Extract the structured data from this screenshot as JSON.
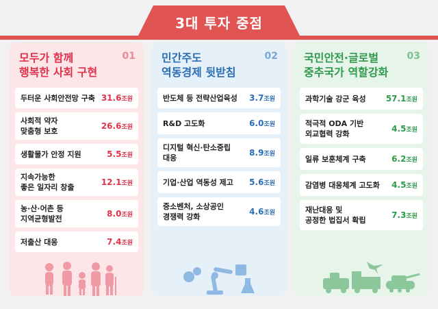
{
  "header": {
    "title": "3대 투자 중점"
  },
  "cards": [
    {
      "title": "모두가 함께\n행복한 사회 구현",
      "num": "01",
      "items": [
        {
          "label": "두터운 사회안전망 구축",
          "value": "31.6",
          "unit": "조원"
        },
        {
          "label": "사회적 약자\n맞춤형 보호",
          "value": "26.6",
          "unit": "조원"
        },
        {
          "label": "생활물가 안정 지원",
          "value": "5.5",
          "unit": "조원"
        },
        {
          "label": "지속가능한\n좋은 일자리 창출",
          "value": "12.1",
          "unit": "조원"
        },
        {
          "label": "농·산·어촌 등\n지역균형발전",
          "value": "8.0",
          "unit": "조원"
        },
        {
          "label": "저출산 대응",
          "value": "7.4",
          "unit": "조원"
        }
      ],
      "illustration": "family-icon"
    },
    {
      "title": "민간주도\n역동경제 뒷받침",
      "num": "02",
      "items": [
        {
          "label": "반도체 등 전략산업육성",
          "value": "3.7",
          "unit": "조원"
        },
        {
          "label": "R&D 고도화",
          "value": "6.0",
          "unit": "조원"
        },
        {
          "label": "디지털 혁신·탄소중립\n대응",
          "value": "8.9",
          "unit": "조원"
        },
        {
          "label": "기업·산업 역동성 제고",
          "value": "5.6",
          "unit": "조원"
        },
        {
          "label": "중소벤처, 소상공인\n경쟁력 강화",
          "value": "4.6",
          "unit": "조원"
        }
      ],
      "illustration": "robot-arm-icon"
    },
    {
      "title": "국민안전·글로벌\n중추국가 역할강화",
      "num": "03",
      "items": [
        {
          "label": "과학기술 강군 육성",
          "value": "57.1",
          "unit": "조원"
        },
        {
          "label": "적극적 ODA 기반\n외교협력 강화",
          "value": "4.5",
          "unit": "조원"
        },
        {
          "label": "일류 보훈체계 구축",
          "value": "6.2",
          "unit": "조원"
        },
        {
          "label": "감염병 대응체계 고도화",
          "value": "4.5",
          "unit": "조원"
        },
        {
          "label": "재난대응 및\n공정한 법집서 확립",
          "value": "7.3",
          "unit": "조원"
        }
      ],
      "illustration": "military-vehicles-icon"
    }
  ]
}
